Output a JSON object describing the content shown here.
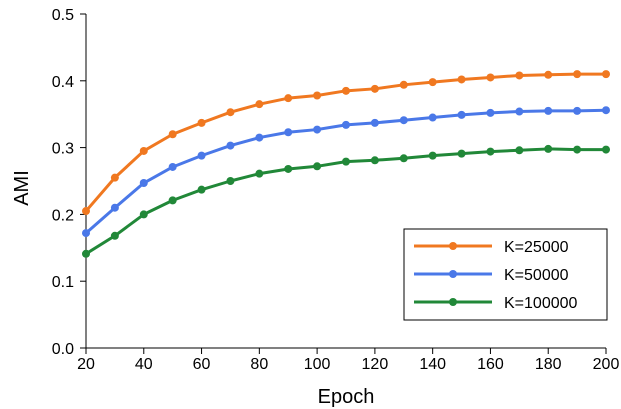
{
  "chart_data": {
    "type": "line",
    "xlabel": "Epoch",
    "ylabel": "AMI",
    "xlim": [
      20,
      200
    ],
    "ylim": [
      0.0,
      0.5
    ],
    "x_ticks": [
      "20",
      "40",
      "60",
      "80",
      "100",
      "120",
      "140",
      "160",
      "180",
      "200"
    ],
    "y_ticks": [
      "0.0",
      "0.1",
      "0.2",
      "0.3",
      "0.4",
      "0.5"
    ],
    "x_tick_values": [
      20,
      40,
      60,
      80,
      100,
      120,
      140,
      160,
      180,
      200
    ],
    "y_tick_values": [
      0.0,
      0.1,
      0.2,
      0.3,
      0.4,
      0.5
    ],
    "grid": false,
    "legend_position": "bottom-right",
    "x": [
      20,
      30,
      40,
      50,
      60,
      70,
      80,
      90,
      100,
      110,
      120,
      130,
      140,
      150,
      160,
      170,
      180,
      190,
      200
    ],
    "series": [
      {
        "name": "K=25000",
        "color": "#f07820",
        "values": [
          0.205,
          0.255,
          0.295,
          0.32,
          0.337,
          0.353,
          0.365,
          0.374,
          0.378,
          0.385,
          0.388,
          0.394,
          0.398,
          0.402,
          0.405,
          0.408,
          0.409,
          0.41,
          0.41
        ]
      },
      {
        "name": "K=50000",
        "color": "#4a78e8",
        "values": [
          0.172,
          0.21,
          0.247,
          0.271,
          0.288,
          0.303,
          0.315,
          0.323,
          0.327,
          0.334,
          0.337,
          0.341,
          0.345,
          0.349,
          0.352,
          0.354,
          0.355,
          0.355,
          0.356
        ]
      },
      {
        "name": "K=100000",
        "color": "#218838",
        "values": [
          0.141,
          0.168,
          0.2,
          0.221,
          0.237,
          0.25,
          0.261,
          0.268,
          0.272,
          0.279,
          0.281,
          0.284,
          0.288,
          0.291,
          0.294,
          0.296,
          0.298,
          0.297,
          0.297
        ]
      }
    ]
  }
}
